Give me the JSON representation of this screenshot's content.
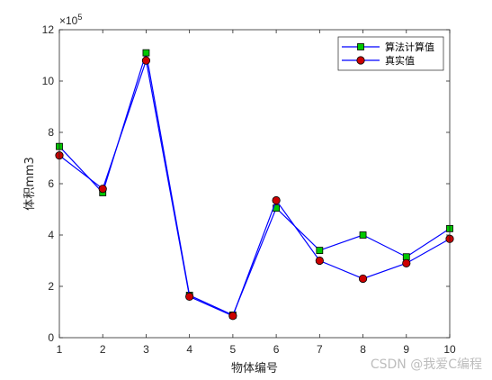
{
  "chart_data": {
    "type": "line",
    "x": [
      1,
      2,
      3,
      4,
      5,
      6,
      7,
      8,
      9,
      10
    ],
    "xlabel": "物体编号",
    "ylabel": "体积mm3",
    "y_exponent_label": "×10",
    "y_exponent_power": "5",
    "xlim": [
      1,
      10
    ],
    "ylim": [
      0,
      12
    ],
    "x_ticks": [
      1,
      2,
      3,
      4,
      5,
      6,
      7,
      8,
      9,
      10
    ],
    "y_ticks": [
      0,
      2,
      4,
      6,
      8,
      10,
      12
    ],
    "grid": false,
    "legend_position": "top-right",
    "series": [
      {
        "name": "算法计算值",
        "values": [
          7.45,
          5.65,
          11.1,
          1.65,
          0.88,
          5.05,
          3.4,
          4.0,
          3.15,
          4.25
        ],
        "line_color": "#0000ff",
        "marker": "square",
        "marker_color": "#00c800"
      },
      {
        "name": "真实值",
        "values": [
          7.1,
          5.8,
          10.8,
          1.6,
          0.85,
          5.35,
          3.0,
          2.3,
          2.9,
          3.85
        ],
        "line_color": "#0000ff",
        "marker": "circle",
        "marker_color": "#cc0000"
      }
    ]
  },
  "watermark": "CSDN @我爱C编程"
}
